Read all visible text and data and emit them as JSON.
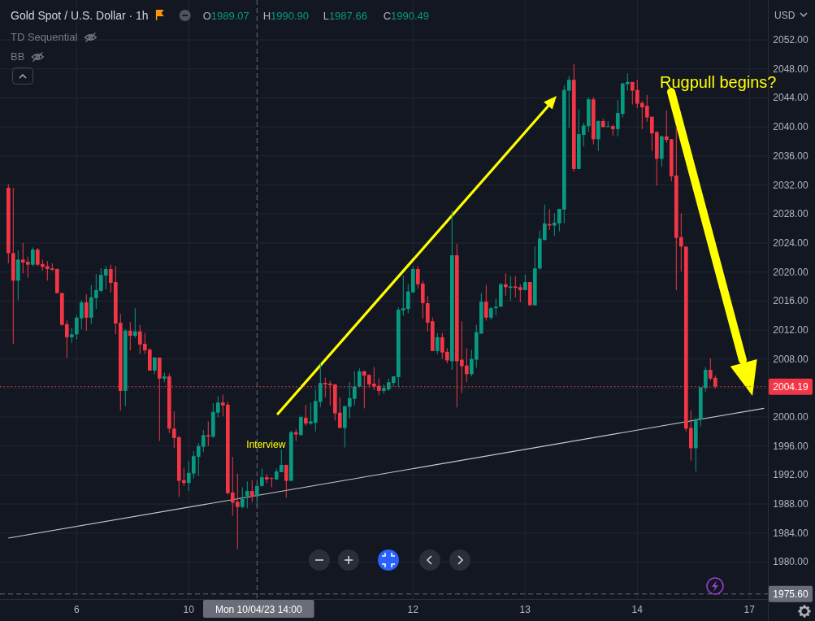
{
  "chart_data": {
    "type": "candlestick",
    "title": "Gold Spot / U.S. Dollar · 1h",
    "ylabel": "USD",
    "categories": [
      null,
      null,
      null,
      null,
      null,
      null,
      null,
      null,
      null,
      null,
      null,
      null,
      null,
      null,
      "6",
      null,
      null,
      null,
      null,
      null,
      null,
      null,
      null,
      null,
      null,
      null,
      null,
      null,
      null,
      null,
      null,
      null,
      null,
      null,
      null,
      null,
      null,
      "10",
      null,
      null,
      null,
      null,
      null,
      null,
      null,
      null,
      null,
      null,
      null,
      null,
      null,
      "Mon 10/04/23 14:00",
      null,
      null,
      null,
      null,
      null,
      null,
      null,
      null,
      null,
      null,
      null,
      null,
      null,
      null,
      null,
      null,
      null,
      null,
      null,
      null,
      null,
      null,
      null,
      null,
      null,
      null,
      null,
      null,
      null,
      null,
      null,
      "12",
      null,
      null,
      null,
      null,
      null,
      null,
      null,
      null,
      null,
      null,
      null,
      null,
      null,
      null,
      null,
      null,
      null,
      null,
      null,
      null,
      null,
      null,
      "13",
      null,
      null,
      null,
      null,
      null,
      null,
      null,
      null,
      null,
      null,
      null,
      null,
      null,
      null,
      null,
      null,
      null,
      null,
      null,
      null,
      null,
      null,
      "14",
      null,
      null,
      null,
      null,
      null,
      null,
      null,
      null,
      null,
      null,
      null,
      null,
      null,
      null,
      null,
      null,
      null,
      null,
      null,
      null,
      null,
      null,
      "17",
      null,
      null,
      null
    ],
    "ohlc": [
      [
        2031.6,
        2032.1,
        2021.2,
        2022.6
      ],
      [
        2022.6,
        2031.6,
        2010.1,
        2018.8
      ],
      [
        2018.8,
        2023.0,
        2016.1,
        2021.7
      ],
      [
        2021.7,
        2024.0,
        2019.8,
        2021.3
      ],
      [
        2021.4,
        2022.1,
        2019.2,
        2021.0
      ],
      [
        2021.0,
        2023.4,
        2020.8,
        2023.1
      ],
      [
        2023.1,
        2023.3,
        2020.8,
        2021.0
      ],
      [
        2021.1,
        2021.7,
        2020.2,
        2020.7
      ],
      [
        2020.8,
        2021.5,
        2018.8,
        2020.4
      ],
      [
        2020.5,
        2021.2,
        2020.2,
        2020.3
      ],
      [
        2020.4,
        2020.5,
        2017.0,
        2017.1
      ],
      [
        2017.1,
        2017.1,
        2012.6,
        2012.7
      ],
      [
        2012.8,
        2013.3,
        2008.1,
        2011.0
      ],
      [
        2011.0,
        2012.3,
        2010.2,
        2011.4
      ],
      [
        2011.4,
        2014.0,
        2010.7,
        2013.7
      ],
      [
        2013.6,
        2016.1,
        2012.1,
        2015.8
      ],
      [
        2015.8,
        2016.9,
        2011.9,
        2013.7
      ],
      [
        2013.7,
        2018.2,
        2012.8,
        2016.5
      ],
      [
        2016.4,
        2019.7,
        2014.9,
        2017.5
      ],
      [
        2017.4,
        2020.5,
        2017.2,
        2019.6
      ],
      [
        2019.5,
        2020.8,
        2017.6,
        2020.4
      ],
      [
        2020.4,
        2021.0,
        2017.2,
        2018.5
      ],
      [
        2018.6,
        2020.8,
        2011.4,
        2012.9
      ],
      [
        2013.0,
        2014.2,
        2000.9,
        2003.6
      ],
      [
        2003.6,
        2012.1,
        2001.5,
        2011.9
      ],
      [
        2011.9,
        2013.1,
        2009.2,
        2011.2
      ],
      [
        2011.2,
        2015.0,
        2010.9,
        2011.8
      ],
      [
        2011.8,
        2012.7,
        2008.7,
        2010.0
      ],
      [
        2010.1,
        2011.6,
        2008.7,
        2009.2
      ],
      [
        2009.3,
        2009.5,
        2006.4,
        2006.4
      ],
      [
        2006.4,
        2008.3,
        2005.9,
        2008.2
      ],
      [
        2008.2,
        2008.2,
        1996.7,
        2005.3
      ],
      [
        2005.3,
        2006.1,
        2004.8,
        2005.6
      ],
      [
        2005.6,
        2006.0,
        1997.8,
        1998.4
      ],
      [
        1998.4,
        2000.8,
        1995.7,
        1997.1
      ],
      [
        1997.2,
        1997.4,
        1989.0,
        1991.2
      ],
      [
        1991.3,
        1993.0,
        1990.5,
        1990.9
      ],
      [
        1990.9,
        1993.9,
        1989.8,
        1992.3
      ],
      [
        1992.2,
        1995.3,
        1991.5,
        1994.6
      ],
      [
        1994.5,
        1996.4,
        1991.9,
        1996.0
      ],
      [
        1995.9,
        1998.2,
        1995.2,
        1997.5
      ],
      [
        1997.5,
        1999.4,
        1996.0,
        1997.3
      ],
      [
        1997.3,
        2001.9,
        1997.1,
        2000.7
      ],
      [
        2000.6,
        2002.9,
        2000.0,
        2002.0
      ],
      [
        2002.0,
        2003.1,
        2000.1,
        2001.6
      ],
      [
        2001.7,
        2002.1,
        1989.3,
        1989.5
      ],
      [
        1989.6,
        1994.5,
        1986.4,
        1988.2
      ],
      [
        1988.3,
        1992.2,
        1981.8,
        1987.6
      ],
      [
        1987.6,
        1990.3,
        1987.4,
        1988.7
      ],
      [
        1989.1,
        1991.1,
        1987.4,
        1989.8
      ],
      [
        1989.8,
        1991.3,
        1988.3,
        1989.0
      ],
      [
        1989.07,
        1990.9,
        1987.66,
        1990.49
      ],
      [
        1990.5,
        1992.9,
        1990.4,
        1991.7
      ],
      [
        1991.7,
        1992.1,
        1990.9,
        1991.4
      ],
      [
        1991.6,
        1991.7,
        1990.3,
        1991.5
      ],
      [
        1991.4,
        1992.9,
        1991.3,
        1992.5
      ],
      [
        1992.4,
        1995.5,
        1992.4,
        1993.4
      ],
      [
        1993.4,
        1993.4,
        1988.9,
        1991.2
      ],
      [
        1991.2,
        1998.1,
        1991.2,
        1997.9
      ],
      [
        1997.9,
        1998.3,
        1996.7,
        1997.6
      ],
      [
        1997.5,
        2000.2,
        1997.5,
        2000.0
      ],
      [
        1999.9,
        2001.7,
        1998.8,
        1999.1
      ],
      [
        1999.1,
        2002.0,
        1998.9,
        1999.4
      ],
      [
        1999.2,
        2003.8,
        1998.0,
        2002.2
      ],
      [
        2002.1,
        2007.5,
        2001.4,
        2004.7
      ],
      [
        2004.7,
        2005.4,
        2002.7,
        2004.5
      ],
      [
        2004.6,
        2005.0,
        2001.6,
        2004.4
      ],
      [
        2004.5,
        2004.5,
        1999.5,
        2000.5
      ],
      [
        2000.6,
        2002.7,
        1998.5,
        1998.5
      ],
      [
        1998.5,
        2001.5,
        1995.8,
        2001.5
      ],
      [
        2001.4,
        2004.8,
        1999.8,
        2002.6
      ],
      [
        2002.5,
        2006.3,
        2001.6,
        2004.2
      ],
      [
        2004.2,
        2006.7,
        2004.1,
        2006.3
      ],
      [
        2006.3,
        2006.4,
        2001.2,
        2005.7
      ],
      [
        2005.8,
        2005.9,
        2004.1,
        2004.5
      ],
      [
        2004.6,
        2006.9,
        2003.7,
        2004.2
      ],
      [
        2004.3,
        2005.3,
        2003.0,
        2003.6
      ],
      [
        2003.6,
        2004.5,
        2003.2,
        2004.0
      ],
      [
        2003.8,
        2005.3,
        2003.6,
        2004.8
      ],
      [
        2004.7,
        2005.6,
        2004.2,
        2005.6
      ],
      [
        2005.5,
        2015.1,
        2004.1,
        2014.8
      ],
      [
        2014.7,
        2019.5,
        2014.0,
        2015.0
      ],
      [
        2014.9,
        2018.3,
        2014.3,
        2017.3
      ],
      [
        2017.2,
        2020.8,
        2017.1,
        2020.4
      ],
      [
        2020.4,
        2020.8,
        2017.7,
        2018.3
      ],
      [
        2018.4,
        2018.8,
        2013.6,
        2015.7
      ],
      [
        2015.7,
        2016.7,
        2011.8,
        2013.0
      ],
      [
        2013.2,
        2013.7,
        2009.1,
        2009.1
      ],
      [
        2009.1,
        2011.6,
        2008.7,
        2011.0
      ],
      [
        2011.0,
        2011.6,
        2008.0,
        2008.9
      ],
      [
        2009.0,
        2009.5,
        2007.4,
        2007.8
      ],
      [
        2007.7,
        2028.4,
        2006.5,
        2022.3
      ],
      [
        2022.3,
        2023.9,
        2001.3,
        2007.7
      ],
      [
        2007.9,
        2013.2,
        2003.3,
        2007.0
      ],
      [
        2007.1,
        2009.5,
        2004.8,
        2005.9
      ],
      [
        2005.9,
        2009.3,
        2005.6,
        2008.0
      ],
      [
        2007.9,
        2012.7,
        2006.8,
        2011.7
      ],
      [
        2011.5,
        2017.1,
        2011.5,
        2015.9
      ],
      [
        2015.9,
        2018.2,
        2013.3,
        2013.7
      ],
      [
        2013.7,
        2015.2,
        2013.4,
        2015.0
      ],
      [
        2015.0,
        2016.3,
        2014.0,
        2015.2
      ],
      [
        2015.2,
        2018.5,
        2015.2,
        2018.3
      ],
      [
        2018.3,
        2019.8,
        2016.7,
        2017.9
      ],
      [
        2017.8,
        2019.4,
        2016.0,
        2018.0
      ],
      [
        2018.0,
        2019.4,
        2016.5,
        2017.8
      ],
      [
        2017.9,
        2018.3,
        2015.8,
        2017.5
      ],
      [
        2017.5,
        2019.6,
        2017.5,
        2018.6
      ],
      [
        2018.6,
        2018.6,
        2015.4,
        2015.4
      ],
      [
        2015.4,
        2023.5,
        2015.4,
        2020.5
      ],
      [
        2020.5,
        2025.7,
        2020.3,
        2024.6
      ],
      [
        2024.4,
        2029.3,
        2024.4,
        2026.7
      ],
      [
        2026.6,
        2028.7,
        2025.8,
        2026.4
      ],
      [
        2026.4,
        2028.1,
        2025.0,
        2026.8
      ],
      [
        2026.7,
        2028.7,
        2025.6,
        2028.7
      ],
      [
        2028.6,
        2045.7,
        2026.7,
        2045.1
      ],
      [
        2045.0,
        2047.0,
        2039.9,
        2046.5
      ],
      [
        2046.5,
        2048.7,
        2033.8,
        2034.2
      ],
      [
        2034.2,
        2042.4,
        2034.2,
        2039.0
      ],
      [
        2038.9,
        2040.6,
        2037.3,
        2040.2
      ],
      [
        2040.1,
        2044.1,
        2039.3,
        2043.8
      ],
      [
        2043.8,
        2044.1,
        2037.6,
        2038.3
      ],
      [
        2038.3,
        2040.9,
        2036.7,
        2040.8
      ],
      [
        2040.8,
        2041.1,
        2039.9,
        2040.0
      ],
      [
        2040.0,
        2040.8,
        2040.0,
        2040.1
      ],
      [
        2040.1,
        2040.3,
        2038.8,
        2039.7
      ],
      [
        2039.7,
        2043.7,
        2038.7,
        2041.9
      ],
      [
        2041.8,
        2046.1,
        2041.3,
        2046.0
      ],
      [
        2045.9,
        2047.4,
        2045.0,
        2046.2
      ],
      [
        2046.2,
        2046.2,
        2043.1,
        2045.0
      ],
      [
        2045.1,
        2046.5,
        2042.6,
        2043.2
      ],
      [
        2043.3,
        2043.6,
        2039.7,
        2042.7
      ],
      [
        2042.9,
        2044.4,
        2040.7,
        2041.3
      ],
      [
        2041.4,
        2041.4,
        2036.7,
        2039.1
      ],
      [
        2039.3,
        2039.4,
        2031.9,
        2035.6
      ],
      [
        2035.6,
        2038.8,
        2034.5,
        2038.7
      ],
      [
        2038.7,
        2042.3,
        2037.8,
        2038.2
      ],
      [
        2038.3,
        2038.3,
        2032.5,
        2033.2
      ],
      [
        2033.3,
        2040.1,
        2017.5,
        2024.7
      ],
      [
        2024.8,
        2028.1,
        2020.1,
        2023.5
      ],
      [
        2023.5,
        2023.5,
        1998.0,
        1998.4
      ],
      [
        1998.5,
        2000.9,
        1994.0,
        1995.7
      ],
      [
        1995.7,
        1999.8,
        1992.5,
        1999.7
      ],
      [
        1999.7,
        2004.1,
        1998.7,
        2004.1
      ],
      [
        2004.0,
        2006.9,
        2003.5,
        2006.5
      ],
      [
        2006.5,
        2008.1,
        2005.0,
        2005.3
      ],
      [
        2005.4,
        2005.7,
        2003.9,
        2004.19
      ],
      null,
      null,
      null,
      null,
      null,
      null,
      null,
      null,
      null,
      null
    ],
    "colors": [
      "#f23645",
      "#f23645",
      "#089981",
      "#f23645",
      "#f23645",
      "#089981",
      "#f23645",
      "#f23645",
      "#f23645",
      "#f23645",
      "#f23645",
      "#f23645",
      "#f23645",
      "#089981",
      "#089981",
      "#089981",
      "#f23645",
      "#089981",
      "#089981",
      "#089981",
      "#089981",
      "#f23645",
      "#f23645",
      "#f23645",
      "#089981",
      "#f23645",
      "#089981",
      "#f23645",
      "#f23645",
      "#f23645",
      "#089981",
      "#f23645",
      "#089981",
      "#f23645",
      "#f23645",
      "#f23645",
      "#f23645",
      "#089981",
      "#089981",
      "#089981",
      "#089981",
      "#f23645",
      "#089981",
      "#089981",
      "#f23645",
      "#f23645",
      "#f23645",
      "#f23645",
      "#089981",
      "#089981",
      "#f23645",
      "#089981",
      "#089981",
      "#f23645",
      "#f23645",
      "#089981",
      "#089981",
      "#f23645",
      "#089981",
      "#f23645",
      "#089981",
      "#f23645",
      "#089981",
      "#089981",
      "#089981",
      "#f23645",
      "#f23645",
      "#f23645",
      "#f23645",
      "#089981",
      "#089981",
      "#089981",
      "#089981",
      "#f23645",
      "#f23645",
      "#f23645",
      "#f23645",
      "#089981",
      "#089981",
      "#089981",
      "#089981",
      "#089981",
      "#089981",
      "#089981",
      "#f23645",
      "#f23645",
      "#f23645",
      "#f23645",
      "#089981",
      "#f23645",
      "#f23645",
      "#089981",
      "#f23645",
      "#f23645",
      "#f23645",
      "#089981",
      "#089981",
      "#089981",
      "#f23645",
      "#089981",
      "#089981",
      "#089981",
      "#f23645",
      "#089981",
      "#f23645",
      "#f23645",
      "#089981",
      "#f23645",
      "#089981",
      "#089981",
      "#089981",
      "#f23645",
      "#089981",
      "#089981",
      "#089981",
      "#089981",
      "#f23645",
      "#089981",
      "#089981",
      "#089981",
      "#f23645",
      "#089981",
      "#f23645",
      "#089981",
      "#f23645",
      "#089981",
      "#089981",
      "#089981",
      "#f23645",
      "#f23645",
      "#f23645",
      "#f23645",
      "#f23645",
      "#f23645",
      "#089981",
      "#f23645",
      "#f23645",
      "#f23645",
      "#f23645",
      "#f23645",
      "#f23645",
      "#089981",
      "#089981",
      "#089981",
      "#f23645",
      "#f23645",
      null,
      null,
      null,
      null,
      null,
      null,
      null,
      null,
      null,
      null
    ],
    "series": [
      {
        "type": "line",
        "color": "#c9cbd2",
        "values": [
          1983.3,
          null,
          null,
          null,
          null,
          null,
          null,
          null,
          null,
          null,
          null,
          null,
          null,
          null,
          null,
          null,
          null,
          null,
          null,
          null,
          null,
          null,
          null,
          null,
          null,
          null,
          null,
          null,
          null,
          null,
          null,
          null,
          null,
          null,
          null,
          null,
          null,
          null,
          null,
          null,
          null,
          null,
          null,
          null,
          null,
          null,
          null,
          null,
          null,
          null,
          null,
          null,
          null,
          null,
          null,
          null,
          null,
          null,
          null,
          null,
          null,
          null,
          null,
          null,
          null,
          null,
          null,
          null,
          null,
          null,
          null,
          null,
          null,
          null,
          null,
          null,
          null,
          null,
          null,
          null,
          null,
          null,
          null,
          null,
          null,
          null,
          null,
          null,
          null,
          null,
          null,
          null,
          null,
          null,
          null,
          null,
          null,
          null,
          null,
          null,
          null,
          null,
          null,
          null,
          null,
          null,
          null,
          null,
          null,
          null,
          null,
          null,
          null,
          null,
          null,
          null,
          null,
          null,
          null,
          null,
          null,
          null,
          null,
          null,
          null,
          null,
          null,
          null,
          null,
          null,
          null,
          null,
          null,
          null,
          null,
          null,
          null,
          null,
          null,
          null,
          null,
          null,
          null,
          null,
          null,
          null,
          null,
          null,
          null,
          null,
          null,
          null,
          null,
          null,
          null,
          2001.2
        ]
      }
    ],
    "ylim": [
      1974.9,
      2057.5
    ],
    "yticks": [
      {
        "value": 1980,
        "label": "1980.00"
      },
      {
        "value": 1984,
        "label": "1984.00"
      },
      {
        "value": 1988,
        "label": "1988.00"
      },
      {
        "value": 1992,
        "label": "1992.00"
      },
      {
        "value": 1996,
        "label": "1996.00"
      },
      {
        "value": 2000,
        "label": "2000.00"
      },
      {
        "value": 2004,
        "label": null
      },
      {
        "value": 2008,
        "label": "2008.00"
      },
      {
        "value": 2012,
        "label": "2012.00"
      },
      {
        "value": 2016,
        "label": "2016.00"
      },
      {
        "value": 2020,
        "label": "2020.00"
      },
      {
        "value": 2024,
        "label": "2024.00"
      },
      {
        "value": 2028,
        "label": "2028.00"
      },
      {
        "value": 2032,
        "label": "2032.00"
      },
      {
        "value": 2036,
        "label": "2036.00"
      },
      {
        "value": 2040,
        "label": "2040.00"
      },
      {
        "value": 2044,
        "label": "2044.00"
      },
      {
        "value": 2048,
        "label": "2048.00"
      },
      {
        "value": 2052,
        "label": "2052.00"
      }
    ],
    "grid": true,
    "ref_lines": [
      {
        "axis": "x",
        "value": "Mon 10/04/23 14:00",
        "color": "#6a6d78",
        "line_style": "dashed"
      },
      {
        "axis": "y",
        "value": 1975.6,
        "label": "1975.60",
        "color": "#6a6d78",
        "line_style": "dashed"
      },
      {
        "axis": "y",
        "value": 2004.19,
        "label": "2004.19",
        "color": "#f23645",
        "line_style": "dotted"
      }
    ],
    "annotations": [
      "TD Sequential",
      "BB",
      "O1989.07",
      "H1990.90",
      "L1987.66",
      "C1990.49",
      {
        "text": "Interview",
        "x": "Mon 10/04/23 14:00",
        "y": 1996.2
      },
      "Rugpull begins?"
    ]
  }
}
